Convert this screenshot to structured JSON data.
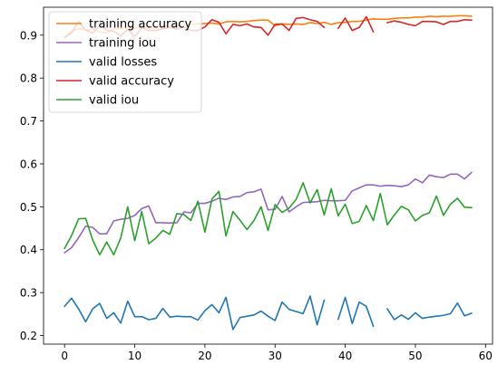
{
  "chart_data": {
    "type": "line",
    "title": "",
    "xlabel": "",
    "ylabel": "",
    "xlim": [
      -3,
      61
    ],
    "ylim": [
      0.18,
      0.965
    ],
    "xticks": [
      0,
      10,
      20,
      30,
      40,
      50,
      60
    ],
    "yticks": [
      0.2,
      0.3,
      0.4,
      0.5,
      0.6,
      0.7,
      0.8,
      0.9
    ],
    "grid": false,
    "legend_position": "top-left",
    "series": [
      {
        "name": "training accuracy",
        "color": "#ff7f0e",
        "values": [
          0.895,
          0.91,
          0.915,
          0.912,
          0.914,
          0.908,
          0.905,
          0.915,
          0.915,
          0.917,
          0.916,
          0.919,
          0.917,
          0.918,
          0.92,
          0.921,
          0.922,
          0.924,
          0.925,
          0.926,
          0.927,
          0.928,
          0.926,
          0.931,
          0.932,
          0.931,
          0.932,
          0.934,
          0.935,
          0.935,
          0.922,
          0.926,
          0.925,
          0.926,
          0.925,
          0.929,
          0.927,
          0.93,
          0.925,
          0.929,
          0.93,
          0.932,
          0.932,
          0.935,
          0.938,
          0.937,
          0.937,
          0.939,
          0.94,
          0.94,
          0.942,
          0.942,
          0.944,
          0.943,
          0.944,
          0.944,
          0.945,
          0.945,
          0.944
        ]
      },
      {
        "name": "training iou",
        "color": "#9467bd",
        "values": [
          0.393,
          0.405,
          0.428,
          0.455,
          0.452,
          0.437,
          0.437,
          0.467,
          0.471,
          0.473,
          0.48,
          0.496,
          0.502,
          0.463,
          0.463,
          0.462,
          0.463,
          0.488,
          0.486,
          0.508,
          0.508,
          0.513,
          0.52,
          0.517,
          0.523,
          0.524,
          0.533,
          0.535,
          0.541,
          0.493,
          0.494,
          0.524,
          0.488,
          0.5,
          0.51,
          0.511,
          0.512,
          0.515,
          0.514,
          0.514,
          0.515,
          0.537,
          0.544,
          0.551,
          0.551,
          0.548,
          0.55,
          0.549,
          0.547,
          0.551,
          0.565,
          0.556,
          0.574,
          0.57,
          0.568,
          0.576,
          0.576,
          0.565,
          0.58
        ]
      },
      {
        "name": "valid losses",
        "color": "#1f77b4",
        "values": [
          0.268,
          0.287,
          0.262,
          0.232,
          0.262,
          0.275,
          0.24,
          0.253,
          0.229,
          0.28,
          0.244,
          0.244,
          0.237,
          0.24,
          0.263,
          0.243,
          0.245,
          0.244,
          0.244,
          0.236,
          0.258,
          0.272,
          0.253,
          0.289,
          0.214,
          0.242,
          0.245,
          0.248,
          0.257,
          0.245,
          0.235,
          0.278,
          0.261,
          0.256,
          0.251,
          0.292,
          0.225,
          0.282,
          null,
          0.238,
          0.289,
          0.228,
          0.278,
          0.268,
          0.222,
          null,
          0.262,
          0.237,
          0.248,
          0.238,
          0.253,
          0.24,
          0.243,
          0.245,
          0.247,
          0.251,
          0.276,
          0.246,
          0.252
        ]
      },
      {
        "name": "valid accuracy",
        "color": "#d62728",
        "values": [
          0.895,
          0.905,
          0.932,
          0.912,
          0.905,
          0.922,
          0.912,
          0.909,
          0.898,
          0.913,
          0.897,
          0.917,
          0.911,
          0.911,
          0.915,
          0.918,
          0.914,
          0.919,
          0.911,
          0.911,
          0.919,
          0.936,
          0.93,
          0.903,
          0.925,
          0.922,
          0.926,
          0.919,
          0.918,
          0.9,
          0.925,
          0.926,
          0.911,
          0.939,
          0.941,
          0.936,
          0.932,
          0.918,
          null,
          0.916,
          0.94,
          0.911,
          0.918,
          0.943,
          0.908,
          null,
          0.929,
          0.933,
          0.93,
          0.925,
          0.922,
          0.932,
          0.932,
          0.931,
          0.925,
          0.932,
          0.932,
          0.936,
          0.935
        ]
      },
      {
        "name": "valid iou",
        "color": "#2ca02c",
        "values": [
          0.403,
          0.433,
          0.472,
          0.473,
          0.423,
          0.388,
          0.418,
          0.388,
          0.427,
          0.5,
          0.421,
          0.489,
          0.414,
          0.427,
          0.445,
          0.436,
          0.484,
          0.482,
          0.468,
          0.513,
          0.441,
          0.518,
          0.536,
          0.432,
          0.489,
          0.469,
          0.447,
          0.468,
          0.5,
          0.445,
          0.505,
          0.487,
          0.497,
          0.517,
          0.556,
          0.509,
          0.54,
          0.481,
          0.542,
          0.479,
          0.506,
          0.461,
          0.466,
          0.503,
          0.468,
          0.531,
          0.458,
          0.481,
          0.501,
          0.493,
          0.467,
          0.48,
          0.486,
          0.525,
          0.48,
          0.506,
          0.52,
          0.499,
          0.498
        ]
      }
    ]
  }
}
